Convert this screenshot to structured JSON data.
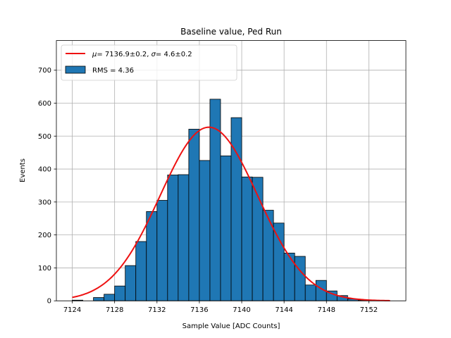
{
  "chart_data": {
    "type": "bar",
    "title": "Baseline value, Ped Run",
    "xlabel": "Sample Value [ADC Counts]",
    "ylabel": "Events",
    "xlim": [
      7122.5,
      7155.5
    ],
    "ylim": [
      0,
      790
    ],
    "grid": true,
    "legend_position": "top-left",
    "x_ticks": [
      7124,
      7128,
      7132,
      7136,
      7140,
      7144,
      7148,
      7152
    ],
    "y_ticks": [
      0,
      100,
      200,
      300,
      400,
      500,
      600,
      700
    ],
    "bin_width": 1,
    "histogram": {
      "name": "RMS = 4.36",
      "color": "#1f77b4",
      "edge_color": "#000000",
      "bin_starts": [
        7124,
        7125,
        7126,
        7127,
        7128,
        7129,
        7130,
        7131,
        7132,
        7133,
        7134,
        7135,
        7136,
        7137,
        7138,
        7139,
        7140,
        7141,
        7142,
        7143,
        7144,
        7145,
        7146,
        7147,
        7148,
        7149,
        7150,
        7151,
        7152
      ],
      "counts": [
        2,
        0,
        10,
        20,
        45,
        107,
        180,
        271,
        305,
        382,
        383,
        521,
        426,
        612,
        440,
        556,
        376,
        375,
        275,
        236,
        145,
        135,
        48,
        62,
        30,
        16,
        6,
        2,
        1
      ]
    },
    "fit": {
      "name_parts": {
        "mu_symbol": "μ",
        "mu_value": "= 7136.9±0.2, ",
        "sigma_symbol": "σ",
        "sigma_value": "= 4.6±0.2"
      },
      "color": "#ee1111",
      "mean": 7136.9,
      "sigma": 4.6,
      "amplitude": 527,
      "x_range": [
        7124,
        7154
      ]
    }
  }
}
